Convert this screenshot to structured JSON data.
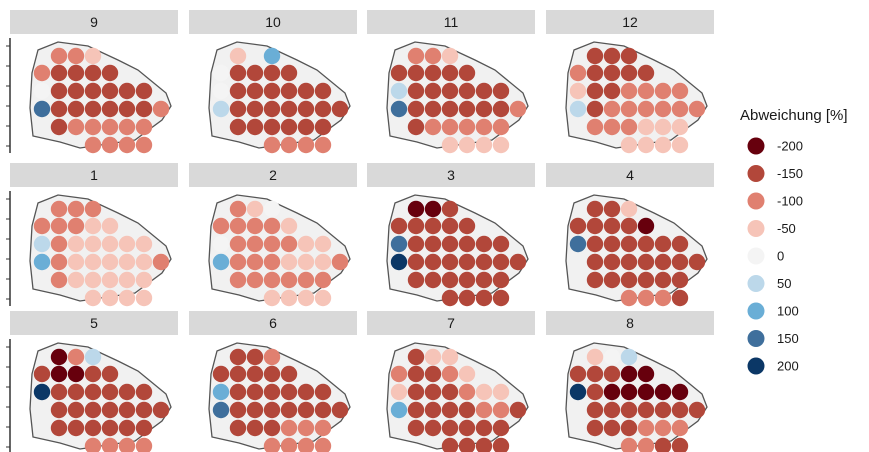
{
  "chart_data": {
    "type": "heatmap",
    "panel_order": [
      "9",
      "10",
      "11",
      "12",
      "1",
      "2",
      "3",
      "4",
      "5",
      "6",
      "7",
      "8"
    ],
    "legend": {
      "title": "Abweichung [%]",
      "entries": [
        {
          "label": "-200",
          "value": -200,
          "color": "#67000d"
        },
        {
          "label": "-150",
          "value": -150,
          "color": "#b2473a"
        },
        {
          "label": "-100",
          "value": -100,
          "color": "#e08070"
        },
        {
          "label": "-50",
          "value": -50,
          "color": "#f6c4b8"
        },
        {
          "label": "0",
          "value": 0,
          "color": "#f4f4f4"
        },
        {
          "label": "50",
          "value": 50,
          "color": "#bcd8ea"
        },
        {
          "label": "100",
          "value": 100,
          "color": "#6aaed6"
        },
        {
          "label": "150",
          "value": 150,
          "color": "#3f6f9c"
        },
        {
          "label": "200",
          "value": 200,
          "color": "#0b3766"
        }
      ]
    },
    "grid_note": "rows top-to-bottom, columns left-to-right; null = no station",
    "panels": [
      {
        "label": "9",
        "values": [
          [
            null,
            -100,
            -100,
            -50,
            null,
            null,
            null,
            null
          ],
          [
            -100,
            -150,
            -150,
            -150,
            -150,
            null,
            null,
            null
          ],
          [
            0,
            -150,
            -150,
            -150,
            -150,
            -150,
            -150,
            null
          ],
          [
            150,
            -150,
            -150,
            -150,
            -150,
            -150,
            -150,
            -100
          ],
          [
            null,
            -150,
            -100,
            -100,
            -100,
            -100,
            -100,
            null
          ],
          [
            null,
            null,
            null,
            -100,
            -100,
            -100,
            -100,
            null
          ]
        ]
      },
      {
        "label": "10",
        "values": [
          [
            null,
            -50,
            null,
            100,
            null,
            null,
            null,
            null
          ],
          [
            0,
            -150,
            -150,
            -150,
            -150,
            null,
            null,
            null
          ],
          [
            0,
            -150,
            -150,
            -150,
            -150,
            -150,
            -150,
            null
          ],
          [
            50,
            -150,
            -150,
            -150,
            -150,
            -150,
            -150,
            -150
          ],
          [
            null,
            -150,
            -150,
            -150,
            -150,
            -150,
            -150,
            null
          ],
          [
            null,
            null,
            null,
            -100,
            -100,
            -100,
            -100,
            null
          ]
        ]
      },
      {
        "label": "11",
        "values": [
          [
            null,
            -100,
            -100,
            -50,
            null,
            null,
            null,
            null
          ],
          [
            -150,
            -150,
            -150,
            -150,
            -150,
            null,
            null,
            null
          ],
          [
            50,
            -150,
            -150,
            -150,
            -150,
            -150,
            -150,
            null
          ],
          [
            150,
            -150,
            -150,
            -150,
            -150,
            -150,
            -150,
            -100
          ],
          [
            null,
            -150,
            -100,
            -100,
            -100,
            -100,
            -100,
            null
          ],
          [
            null,
            null,
            null,
            -50,
            -50,
            -50,
            -50,
            null
          ]
        ]
      },
      {
        "label": "12",
        "values": [
          [
            null,
            -150,
            -150,
            -150,
            null,
            null,
            null,
            null
          ],
          [
            -100,
            -150,
            -150,
            -150,
            -150,
            null,
            null,
            null
          ],
          [
            -50,
            -150,
            -150,
            -100,
            -100,
            -100,
            -100,
            null
          ],
          [
            50,
            -150,
            -100,
            -100,
            -100,
            -100,
            -100,
            -100
          ],
          [
            null,
            -100,
            -100,
            -100,
            -50,
            -50,
            -50,
            null
          ],
          [
            null,
            null,
            null,
            -50,
            -50,
            -50,
            -50,
            null
          ]
        ]
      },
      {
        "label": "1",
        "values": [
          [
            null,
            -100,
            -100,
            -100,
            null,
            null,
            null,
            null
          ],
          [
            -100,
            -100,
            -100,
            -50,
            -50,
            null,
            null,
            null
          ],
          [
            50,
            -100,
            -50,
            -50,
            -50,
            -50,
            -50,
            null
          ],
          [
            100,
            -100,
            -50,
            -50,
            -50,
            -50,
            -50,
            -100
          ],
          [
            null,
            -100,
            -50,
            -50,
            -50,
            -50,
            -50,
            null
          ],
          [
            null,
            null,
            null,
            -50,
            -50,
            -50,
            -50,
            null
          ]
        ]
      },
      {
        "label": "2",
        "values": [
          [
            null,
            -100,
            -50,
            0,
            null,
            null,
            null,
            null
          ],
          [
            -100,
            -100,
            -100,
            -100,
            -50,
            null,
            null,
            null
          ],
          [
            0,
            -100,
            -100,
            -100,
            -100,
            -50,
            -50,
            null
          ],
          [
            100,
            -100,
            -100,
            -100,
            -50,
            -50,
            -50,
            -100
          ],
          [
            null,
            -100,
            -100,
            -100,
            -100,
            -100,
            -100,
            null
          ],
          [
            null,
            null,
            null,
            -50,
            -50,
            -50,
            -50,
            null
          ]
        ]
      },
      {
        "label": "3",
        "values": [
          [
            null,
            -200,
            -200,
            -150,
            null,
            null,
            null,
            null
          ],
          [
            -150,
            -150,
            -150,
            -150,
            -150,
            null,
            null,
            null
          ],
          [
            150,
            -150,
            -150,
            -150,
            -150,
            -150,
            -150,
            null
          ],
          [
            200,
            -150,
            -150,
            -150,
            -150,
            -150,
            -150,
            -150
          ],
          [
            null,
            -150,
            -150,
            -150,
            -150,
            -150,
            -150,
            null
          ],
          [
            null,
            null,
            null,
            -150,
            -150,
            -150,
            -150,
            null
          ]
        ]
      },
      {
        "label": "4",
        "values": [
          [
            null,
            -150,
            -150,
            -50,
            null,
            null,
            null,
            null
          ],
          [
            -150,
            -150,
            -150,
            -150,
            -200,
            null,
            null,
            null
          ],
          [
            150,
            -150,
            -150,
            -150,
            -150,
            -150,
            -150,
            null
          ],
          [
            null,
            -150,
            -150,
            -150,
            -150,
            -150,
            -150,
            -150
          ],
          [
            null,
            -150,
            -150,
            -150,
            -150,
            -150,
            -150,
            null
          ],
          [
            null,
            null,
            null,
            -100,
            -100,
            -100,
            -150,
            null
          ]
        ]
      },
      {
        "label": "5",
        "values": [
          [
            null,
            -200,
            -100,
            50,
            null,
            null,
            null,
            null
          ],
          [
            -150,
            -200,
            -200,
            -150,
            -150,
            null,
            null,
            null
          ],
          [
            200,
            -150,
            -150,
            -150,
            -150,
            -150,
            -150,
            null
          ],
          [
            null,
            -150,
            -150,
            -150,
            -150,
            -150,
            -150,
            -150
          ],
          [
            null,
            -150,
            -150,
            -150,
            -150,
            -150,
            -150,
            null
          ],
          [
            null,
            null,
            null,
            -100,
            -100,
            -100,
            -100,
            null
          ]
        ]
      },
      {
        "label": "6",
        "values": [
          [
            null,
            -150,
            -150,
            -100,
            null,
            null,
            null,
            null
          ],
          [
            -150,
            -150,
            -150,
            -150,
            -150,
            null,
            null,
            null
          ],
          [
            100,
            -150,
            -150,
            -150,
            -150,
            -150,
            -150,
            null
          ],
          [
            150,
            -150,
            -150,
            -150,
            -150,
            -150,
            -150,
            -150
          ],
          [
            null,
            -150,
            -150,
            -150,
            -100,
            -100,
            -100,
            null
          ],
          [
            null,
            null,
            null,
            -100,
            -100,
            -100,
            -100,
            null
          ]
        ]
      },
      {
        "label": "7",
        "values": [
          [
            null,
            -150,
            -50,
            -50,
            null,
            null,
            null,
            null
          ],
          [
            -100,
            -150,
            -150,
            -100,
            -50,
            null,
            null,
            null
          ],
          [
            -50,
            -150,
            -150,
            -150,
            -100,
            -50,
            -50,
            null
          ],
          [
            100,
            -150,
            -150,
            -150,
            -150,
            -100,
            -100,
            -150
          ],
          [
            null,
            -150,
            -150,
            -150,
            -150,
            -150,
            -150,
            null
          ],
          [
            null,
            null,
            null,
            -150,
            -150,
            -150,
            -150,
            null
          ]
        ]
      },
      {
        "label": "8",
        "values": [
          [
            null,
            -50,
            0,
            50,
            null,
            null,
            null,
            null
          ],
          [
            -150,
            -150,
            -150,
            -200,
            -200,
            null,
            null,
            null
          ],
          [
            200,
            -150,
            -200,
            -200,
            -200,
            -200,
            -200,
            null
          ],
          [
            null,
            -150,
            -150,
            -150,
            -150,
            -150,
            -150,
            -150
          ],
          [
            null,
            -150,
            -150,
            -150,
            -100,
            -100,
            -100,
            null
          ],
          [
            null,
            null,
            null,
            -100,
            -100,
            -150,
            -150,
            null
          ]
        ]
      }
    ]
  }
}
